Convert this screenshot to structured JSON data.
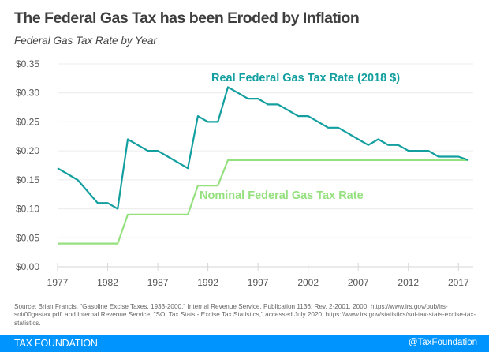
{
  "header": {
    "title": "The Federal Gas Tax has been Eroded by Inflation",
    "subtitle": "Federal Gas Tax Rate by Year"
  },
  "chart_data": {
    "type": "line",
    "title": "The Federal Gas Tax has been Eroded by Inflation",
    "subtitle": "Federal Gas Tax Rate by Year",
    "xlabel": "",
    "ylabel": "",
    "xlim": [
      1977,
      2018
    ],
    "ylim": [
      0,
      0.35
    ],
    "grid": true,
    "x_ticks": [
      1977,
      1982,
      1987,
      1992,
      1997,
      2002,
      2007,
      2012,
      2017
    ],
    "x_tick_labels": [
      "1977",
      "1982",
      "1987",
      "1992",
      "1997",
      "2002",
      "2007",
      "2012",
      "2017"
    ],
    "y_ticks": [
      0,
      0.05,
      0.1,
      0.15,
      0.2,
      0.25,
      0.3,
      0.35
    ],
    "y_tick_labels": [
      "$0.00",
      "$0.05",
      "$0.10",
      "$0.15",
      "$0.20",
      "$0.25",
      "$0.30",
      "$0.35"
    ],
    "x": [
      1977,
      1978,
      1979,
      1980,
      1981,
      1982,
      1983,
      1984,
      1985,
      1986,
      1987,
      1988,
      1989,
      1990,
      1991,
      1992,
      1993,
      1994,
      1995,
      1996,
      1997,
      1998,
      1999,
      2000,
      2001,
      2002,
      2003,
      2004,
      2005,
      2006,
      2007,
      2008,
      2009,
      2010,
      2011,
      2012,
      2013,
      2014,
      2015,
      2016,
      2017,
      2018
    ],
    "series": [
      {
        "name": "Real Federal Gas Tax Rate (2018 $)",
        "color": "#139f9f",
        "values": [
          0.17,
          0.16,
          0.15,
          0.13,
          0.11,
          0.11,
          0.1,
          0.22,
          0.21,
          0.2,
          0.2,
          0.19,
          0.18,
          0.17,
          0.26,
          0.25,
          0.25,
          0.31,
          0.3,
          0.29,
          0.29,
          0.28,
          0.28,
          0.27,
          0.26,
          0.26,
          0.25,
          0.24,
          0.24,
          0.23,
          0.22,
          0.21,
          0.22,
          0.21,
          0.21,
          0.2,
          0.2,
          0.2,
          0.19,
          0.19,
          0.19,
          0.184
        ]
      },
      {
        "name": "Nominal Federal Gas Tax Rate",
        "color": "#95e07f",
        "values": [
          0.04,
          0.04,
          0.04,
          0.04,
          0.04,
          0.04,
          0.04,
          0.09,
          0.09,
          0.09,
          0.09,
          0.09,
          0.09,
          0.09,
          0.14,
          0.14,
          0.14,
          0.184,
          0.184,
          0.184,
          0.184,
          0.184,
          0.184,
          0.184,
          0.184,
          0.184,
          0.184,
          0.184,
          0.184,
          0.184,
          0.184,
          0.184,
          0.184,
          0.184,
          0.184,
          0.184,
          0.184,
          0.184,
          0.184,
          0.184,
          0.184,
          0.184
        ]
      }
    ],
    "annotations": [
      {
        "text": "Real Federal Gas Tax Rate (2018 $)",
        "series": 0
      },
      {
        "text": "Nominal Federal Gas Tax Rate",
        "series": 1
      }
    ],
    "legend": "inline-labels"
  },
  "source": "Source: Brian Francis, \"Gasoline Excise Taxes, 1933-2000,\" Internal Revenue Service, Publication 1136: Rev. 2-2001, 2000, https://www.irs.gov/pub/irs-soi/00gastax.pdf; and Internal Revenue Service, \"SOI Tax Stats - Excise Tax Statistics,\" accessed July 2020, https://www.irs.gov/statistics/soi-tax-stats-excise-tax-statistics.",
  "footer": {
    "brand": "TAX FOUNDATION",
    "handle": "@TaxFoundation",
    "color": "#0094ff"
  }
}
